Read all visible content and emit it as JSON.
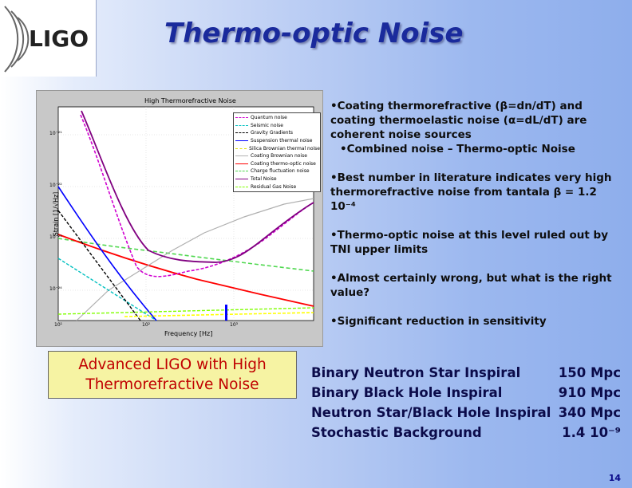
{
  "logo": {
    "text": "LIGO"
  },
  "slide": {
    "title": "Thermo-optic Noise",
    "page_number": "14"
  },
  "plot": {
    "title": "High Thermorefractive Noise",
    "xlabel": "Frequency [Hz]",
    "ylabel": "Strain [1/√Hz]",
    "x_ticks": [
      "10¹",
      "10²",
      "10³"
    ],
    "y_ticks": [
      "10⁻²¹",
      "10⁻²²",
      "10⁻²³",
      "10⁻²⁴"
    ],
    "legend": [
      {
        "label": "Quantum noise",
        "color": "#d000d0",
        "dash": "dashed"
      },
      {
        "label": "Seismic noise",
        "color": "#00c0c0",
        "dash": "dashed"
      },
      {
        "label": "Gravity Gradients",
        "color": "#000000",
        "dash": "dashed"
      },
      {
        "label": "Suspension thermal noise",
        "color": "#0000ff",
        "dash": "solid"
      },
      {
        "label": "Silica Brownian thermal noise",
        "color": "#ffff00",
        "dash": "dashed"
      },
      {
        "label": "Coating Brownian noise",
        "color": "#000000",
        "dash": "solid"
      },
      {
        "label": "Coating thermo-optic noise",
        "color": "#ff0000",
        "dash": "solid"
      },
      {
        "label": "Charge fluctuation noise",
        "color": "#4ed84e",
        "dash": "dashed"
      },
      {
        "label": "Total Noise",
        "color": "#800080",
        "dash": "solid"
      },
      {
        "label": "Residual Gas Noise",
        "color": "#80ff00",
        "dash": "dashed"
      }
    ]
  },
  "bullets": [
    {
      "text": "•Coating thermorefractive (β=dn/dT) and coating thermoelastic noise (α=dL/dT) are coherent noise sources"
    },
    {
      "text": "•Combined noise – Thermo-optic Noise"
    },
    {
      "text": "•Best number in literature indicates very high thermorefractive noise from tantala β = 1.2 10⁻⁴"
    },
    {
      "text": "•Thermo-optic noise at this level ruled out by TNI upper limits"
    },
    {
      "text": "•Almost certainly wrong, but what is the right value?"
    },
    {
      "text": "•Significant reduction in sensitivity"
    }
  ],
  "callout": {
    "line1": "Advanced LIGO with High",
    "line2": "Thermorefractive Noise"
  },
  "results": [
    {
      "label": "Binary Neutron Star Inspiral",
      "value": "150 Mpc"
    },
    {
      "label": "Binary Black Hole Inspiral",
      "value": "910 Mpc"
    },
    {
      "label": "Neutron Star/Black Hole Inspiral",
      "value": "340 Mpc"
    },
    {
      "label": "Stochastic Background",
      "value": "1.4 10⁻⁹"
    }
  ]
}
